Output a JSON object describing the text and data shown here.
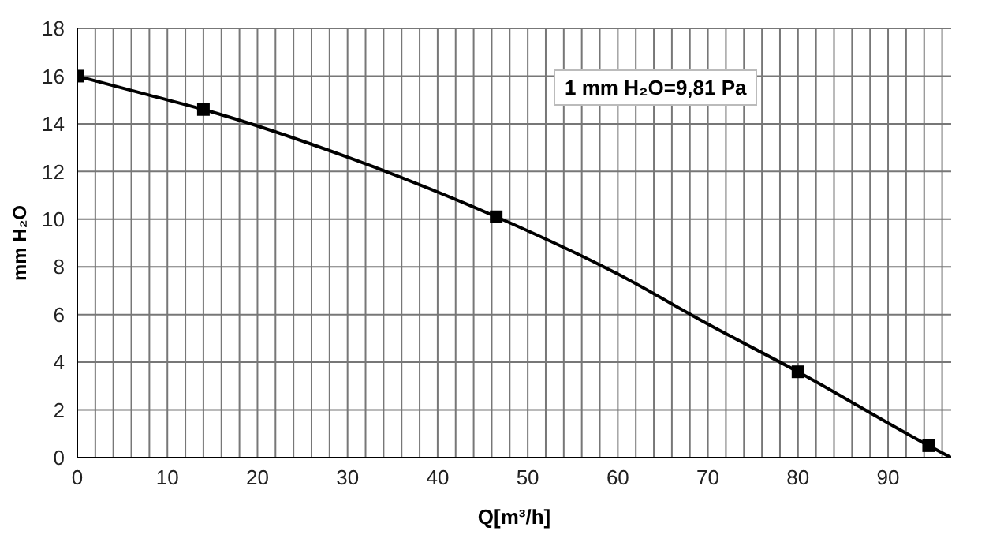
{
  "chart_data": {
    "type": "line",
    "xlabel": "Q[m³/h]",
    "ylabel": "mm H₂O",
    "annotations": [
      "1 mm H₂O=9,81 Pa"
    ],
    "series": [
      {
        "color": "#000000",
        "marker": "none",
        "x": [
          0,
          8,
          14,
          30,
          46.5,
          60,
          70,
          80,
          94.5,
          97
        ],
        "values": [
          16,
          15.2,
          14.6,
          12.6,
          10.1,
          7.7,
          5.6,
          3.6,
          0.5,
          0
        ]
      },
      {
        "type": "scatter",
        "color": "#000000",
        "marker": "square",
        "x": [
          0,
          14,
          46.5,
          80,
          94.5
        ],
        "values": [
          16,
          14.6,
          10.1,
          3.6,
          0.5
        ]
      }
    ],
    "xlim": [
      0,
      97
    ],
    "xticks": [
      0,
      {
        "value": 2,
        "label": null
      },
      {
        "value": 4,
        "label": null
      },
      {
        "value": 6,
        "label": null
      },
      {
        "value": 8,
        "label": null
      },
      10,
      {
        "value": 12,
        "label": null
      },
      {
        "value": 14,
        "label": null
      },
      {
        "value": 16,
        "label": null
      },
      {
        "value": 18,
        "label": null
      },
      20,
      {
        "value": 22,
        "label": null
      },
      {
        "value": 24,
        "label": null
      },
      {
        "value": 26,
        "label": null
      },
      {
        "value": 28,
        "label": null
      },
      30,
      {
        "value": 32,
        "label": null
      },
      {
        "value": 34,
        "label": null
      },
      {
        "value": 36,
        "label": null
      },
      {
        "value": 38,
        "label": null
      },
      40,
      {
        "value": 42,
        "label": null
      },
      {
        "value": 44,
        "label": null
      },
      {
        "value": 46,
        "label": null
      },
      {
        "value": 48,
        "label": null
      },
      50,
      {
        "value": 52,
        "label": null
      },
      {
        "value": 54,
        "label": null
      },
      {
        "value": 56,
        "label": null
      },
      {
        "value": 58,
        "label": null
      },
      60,
      {
        "value": 62,
        "label": null
      },
      {
        "value": 64,
        "label": null
      },
      {
        "value": 66,
        "label": null
      },
      {
        "value": 68,
        "label": null
      },
      70,
      {
        "value": 72,
        "label": null
      },
      {
        "value": 74,
        "label": null
      },
      {
        "value": 76,
        "label": null
      },
      {
        "value": 78,
        "label": null
      },
      80,
      {
        "value": 82,
        "label": null
      },
      {
        "value": 84,
        "label": null
      },
      {
        "value": 86,
        "label": null
      },
      {
        "value": 88,
        "label": null
      },
      90,
      {
        "value": 92,
        "label": null
      },
      {
        "value": 94,
        "label": null
      },
      {
        "value": 96,
        "label": null
      }
    ],
    "ylim": [
      0,
      18
    ],
    "yticks": [
      0,
      2,
      4,
      6,
      8,
      10,
      12,
      14,
      16,
      18
    ],
    "grid": true
  }
}
